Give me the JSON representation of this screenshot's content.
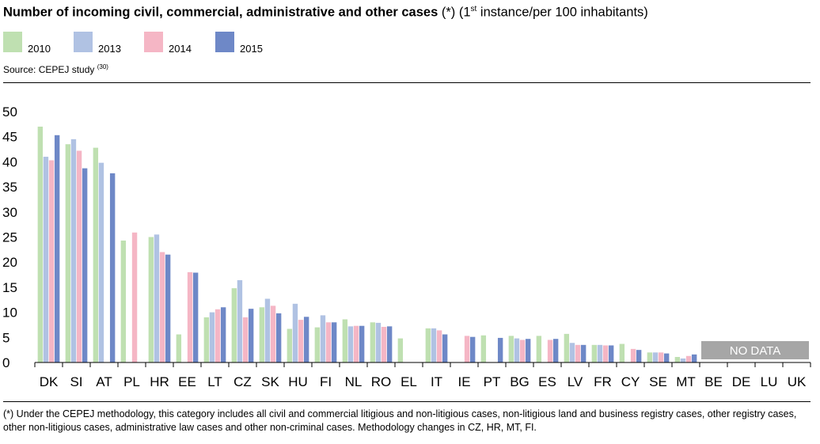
{
  "title": {
    "bold": "Number of incoming civil, commercial, administrative and other cases",
    "asterisk": "(*)",
    "pre": "(1",
    "sup": "st",
    "post": " instance/per 100 inhabitants)"
  },
  "source": {
    "text": "Source: CEPEJ study",
    "ref": "(30)"
  },
  "footnote": "(*) Under the CEPEJ methodology, this category includes all civil and commercial litigious and non-litigious cases, non-litigious land and business registry cases, other registry cases, other non-litigious cases, administrative law cases and other non-criminal cases. Methodology changes in CZ, HR, MT, FI.",
  "colors": {
    "2010": "#bfe0b1",
    "2013": "#b0c2e3",
    "2014": "#f5b6c5",
    "2015": "#6e88c7",
    "no_data": "#a6a6a6"
  },
  "chart_data": {
    "type": "bar",
    "categories": [
      "DK",
      "SI",
      "AT",
      "PL",
      "HR",
      "EE",
      "LT",
      "CZ",
      "SK",
      "HU",
      "FI",
      "NL",
      "RO",
      "EL",
      "IT",
      "IE",
      "PT",
      "BG",
      "ES",
      "LV",
      "FR",
      "CY",
      "SE",
      "MT",
      "BE",
      "DE",
      "LU",
      "UK"
    ],
    "series": [
      {
        "name": "2010",
        "values": [
          47.0,
          43.5,
          42.8,
          24.3,
          25.0,
          5.6,
          9.0,
          14.8,
          11.0,
          6.7,
          7.0,
          8.6,
          8.0,
          4.8,
          6.8,
          null,
          5.4,
          5.3,
          5.3,
          5.7,
          3.5,
          3.7,
          2.0,
          1.1,
          null,
          null,
          null,
          null
        ]
      },
      {
        "name": "2013",
        "values": [
          41.0,
          44.5,
          39.8,
          null,
          25.5,
          null,
          10.0,
          16.4,
          12.7,
          11.7,
          9.4,
          7.2,
          7.9,
          null,
          6.8,
          null,
          null,
          4.8,
          null,
          3.9,
          3.5,
          null,
          2.0,
          0.8,
          null,
          null,
          null,
          null
        ]
      },
      {
        "name": "2014",
        "values": [
          40.3,
          42.2,
          null,
          25.9,
          22.0,
          18.0,
          10.6,
          9.0,
          11.3,
          8.5,
          8.0,
          7.3,
          7.1,
          null,
          6.4,
          5.3,
          null,
          4.5,
          4.5,
          3.5,
          3.4,
          2.7,
          2.0,
          1.3,
          null,
          null,
          null,
          null
        ]
      },
      {
        "name": "2015",
        "values": [
          45.3,
          38.7,
          37.7,
          null,
          21.5,
          17.9,
          11.0,
          10.7,
          9.8,
          9.1,
          8.0,
          7.3,
          7.2,
          null,
          5.6,
          5.1,
          4.9,
          4.7,
          4.7,
          3.5,
          3.4,
          2.5,
          1.8,
          1.6,
          null,
          null,
          null,
          null
        ]
      }
    ],
    "ylim": [
      0,
      50
    ],
    "yticks": [
      0,
      5,
      10,
      15,
      20,
      25,
      30,
      35,
      40,
      45,
      50
    ],
    "grid": false,
    "legend": "top-left",
    "annotation": "NO DATA"
  }
}
